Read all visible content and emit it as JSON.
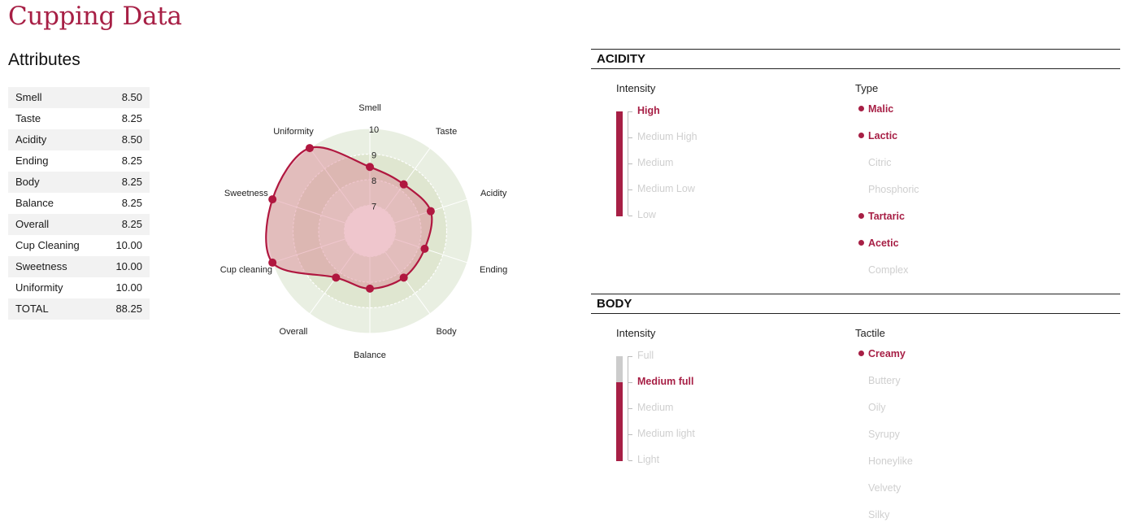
{
  "page_title": "Cupping Data",
  "attributes": {
    "heading": "Attributes",
    "rows": [
      {
        "label": "Smell",
        "value": "8.50"
      },
      {
        "label": "Taste",
        "value": "8.25"
      },
      {
        "label": "Acidity",
        "value": "8.50"
      },
      {
        "label": "Ending",
        "value": "8.25"
      },
      {
        "label": "Body",
        "value": "8.25"
      },
      {
        "label": "Balance",
        "value": "8.25"
      },
      {
        "label": "Overall",
        "value": "8.25"
      },
      {
        "label": "Cup Cleaning",
        "value": "10.00"
      },
      {
        "label": "Sweetness",
        "value": "10.00"
      },
      {
        "label": "Uniformity",
        "value": "10.00"
      },
      {
        "label": "TOTAL",
        "value": "88.25"
      }
    ]
  },
  "chart_data": {
    "type": "radar",
    "categories": [
      "Smell",
      "Taste",
      "Acidity",
      "Ending",
      "Body",
      "Balance",
      "Overall",
      "Cup cleaning",
      "Sweetness",
      "Uniformity"
    ],
    "values": [
      8.5,
      8.25,
      8.5,
      8.25,
      8.25,
      8.25,
      8.25,
      10.0,
      10.0,
      10.0
    ],
    "rlim": [
      6,
      10
    ],
    "rticks": [
      "7",
      "8",
      "9",
      "10"
    ],
    "grid": true,
    "colors": {
      "line": "#b0173f",
      "fill": "#d97787",
      "band_outer": "#e9efe2",
      "band_inner": "#dfe6d0",
      "center_disc": "#ffffff",
      "grid": "#ffffff"
    }
  },
  "acidity": {
    "title": "ACIDITY",
    "intensity_label": "Intensity",
    "type_label": "Type",
    "levels": [
      {
        "label": "High",
        "active": true
      },
      {
        "label": "Medium High",
        "active": false
      },
      {
        "label": "Medium",
        "active": false
      },
      {
        "label": "Medium Low",
        "active": false
      },
      {
        "label": "Low",
        "active": false
      }
    ],
    "level_fill_fraction": 1.0,
    "types": [
      {
        "label": "Malic",
        "active": true
      },
      {
        "label": "Lactic",
        "active": true
      },
      {
        "label": "Citric",
        "active": false
      },
      {
        "label": "Phosphoric",
        "active": false
      },
      {
        "label": "Tartaric",
        "active": true
      },
      {
        "label": "Acetic",
        "active": true
      },
      {
        "label": "Complex",
        "active": false
      }
    ]
  },
  "body": {
    "title": "BODY",
    "intensity_label": "Intensity",
    "tactile_label": "Tactile",
    "levels": [
      {
        "label": "Full",
        "active": false
      },
      {
        "label": "Medium full",
        "active": true
      },
      {
        "label": "Medium",
        "active": false
      },
      {
        "label": "Medium light",
        "active": false
      },
      {
        "label": "Light",
        "active": false
      }
    ],
    "level_fill_fraction": 0.75,
    "tactile": [
      {
        "label": "Creamy",
        "active": true
      },
      {
        "label": "Buttery",
        "active": false
      },
      {
        "label": "Oily",
        "active": false
      },
      {
        "label": "Syrupy",
        "active": false
      },
      {
        "label": "Honeylike",
        "active": false
      },
      {
        "label": "Velvety",
        "active": false
      },
      {
        "label": "Silky",
        "active": false
      }
    ]
  }
}
